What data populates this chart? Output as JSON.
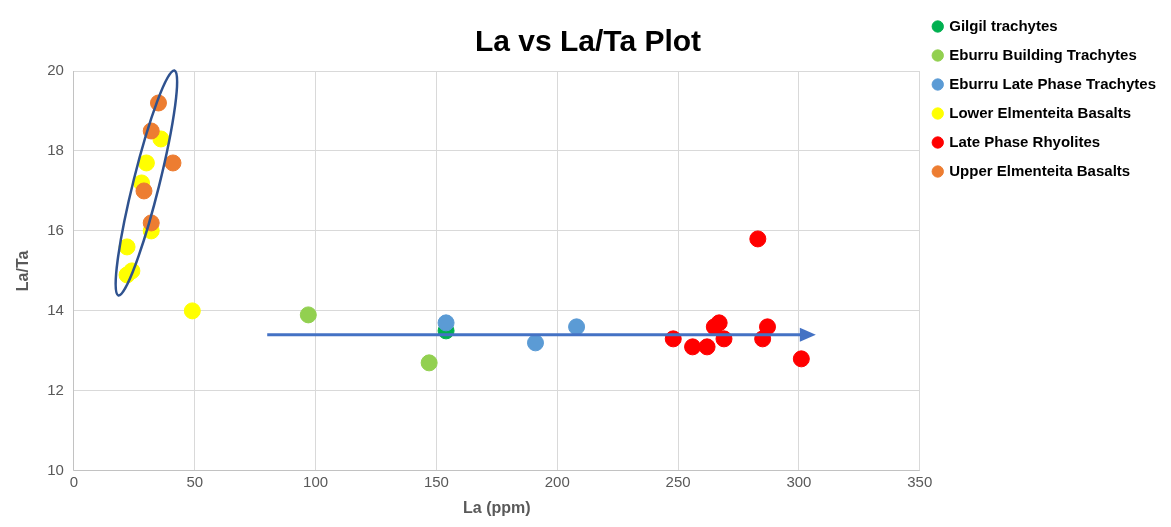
{
  "chart_data": {
    "type": "scatter",
    "title": "La vs La/Ta Plot",
    "xlabel": "La (ppm)",
    "ylabel": "La/Ta",
    "xlim": [
      0,
      350
    ],
    "xticks": [
      0,
      50,
      100,
      150,
      200,
      250,
      300,
      350
    ],
    "ylim": [
      10,
      20
    ],
    "yticks": [
      10,
      12,
      14,
      16,
      18,
      20
    ],
    "grid": true,
    "legend": "top right",
    "marker": "circle",
    "series": [
      {
        "name": "Gilgil trachytes",
        "color": "#00b050",
        "x": [
          154
        ],
        "values": [
          13.5
        ]
      },
      {
        "name": "Eburru Building Trachytes",
        "color": "#92d050",
        "x": [
          97,
          147
        ],
        "values": [
          13.9,
          12.7
        ]
      },
      {
        "name": "Eburru Late Phase Trachytes",
        "color": "#5b9bd5",
        "x": [
          154,
          191,
          208
        ],
        "values": [
          13.7,
          13.2,
          13.6
        ]
      },
      {
        "name": "Lower Elmenteita Basalts",
        "color": "#ffff00",
        "x": [
          36,
          30,
          28,
          32,
          22,
          22,
          24,
          49
        ],
        "values": [
          18.3,
          17.7,
          17.2,
          16.0,
          15.6,
          14.9,
          15.0,
          14.0
        ]
      },
      {
        "name": "Late Phase Rhyolites",
        "color": "#ff0000",
        "x": [
          248,
          256,
          262,
          267,
          265,
          269,
          283,
          285,
          287,
          301
        ],
        "values": [
          13.3,
          13.1,
          13.1,
          13.7,
          13.6,
          13.3,
          15.8,
          13.3,
          13.6,
          12.8
        ]
      },
      {
        "name": "Upper Elmenteita Basalts",
        "color": "#ed7d31",
        "x": [
          35,
          32,
          41,
          29,
          32
        ],
        "values": [
          19.2,
          18.5,
          17.7,
          17.0,
          16.2
        ]
      }
    ]
  }
}
